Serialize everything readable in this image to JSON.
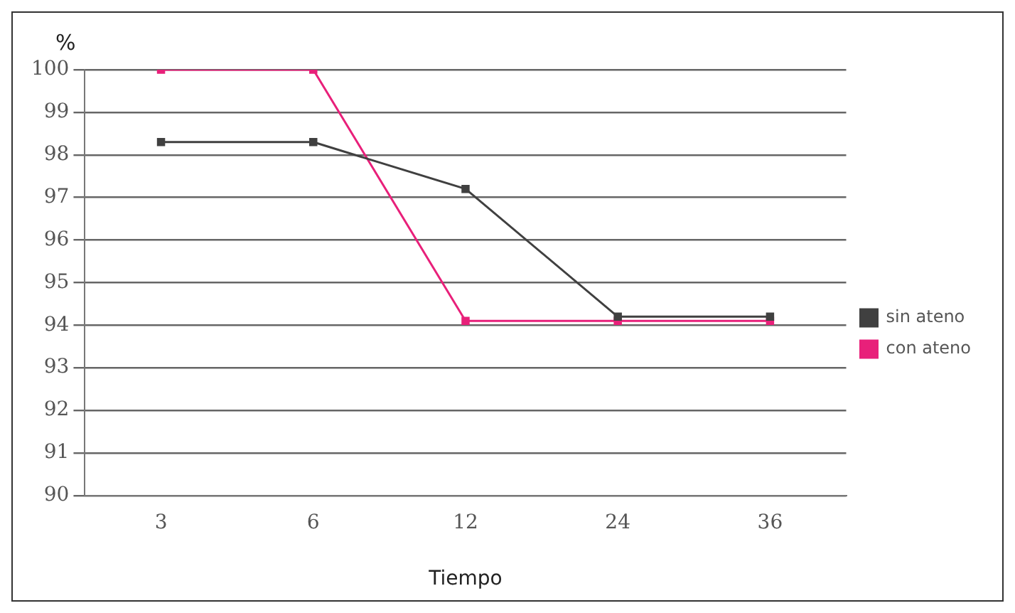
{
  "chart_data": {
    "type": "line",
    "ylabel": "%",
    "xlabel": "Tiempo",
    "categories": [
      "3",
      "6",
      "12",
      "24",
      "36"
    ],
    "series": [
      {
        "name": "sin ateno",
        "color": "#404040",
        "values": [
          98.3,
          98.3,
          97.2,
          94.2,
          94.2
        ]
      },
      {
        "name": "con ateno",
        "color": "#e8207a",
        "values": [
          100,
          100,
          94.1,
          94.1,
          94.1
        ]
      }
    ],
    "ylim": [
      90,
      100
    ],
    "yticks": [
      90,
      91,
      92,
      93,
      94,
      95,
      96,
      97,
      98,
      99,
      100
    ],
    "grid": "y",
    "legend": "right",
    "marker": "square",
    "line_style": "solid"
  }
}
